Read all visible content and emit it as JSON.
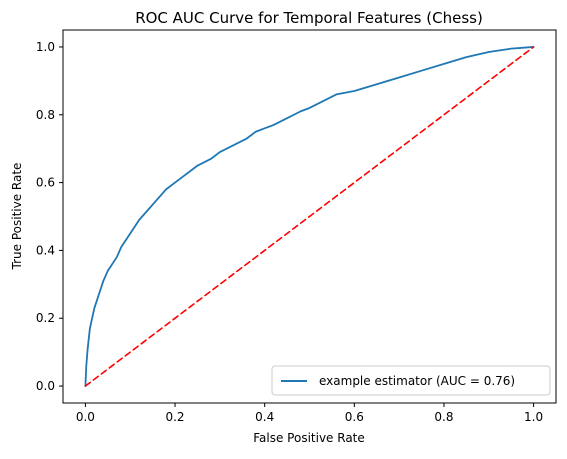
{
  "chart_data": {
    "type": "line",
    "title": "ROC AUC Curve for Temporal Features (Chess)",
    "xlabel": "False Positive Rate",
    "ylabel": "True Positive Rate",
    "xlim": [
      -0.05,
      1.05
    ],
    "ylim": [
      -0.05,
      1.05
    ],
    "x_ticks": [
      0.0,
      0.2,
      0.4,
      0.6,
      0.8,
      1.0
    ],
    "y_ticks": [
      0.0,
      0.2,
      0.4,
      0.6,
      0.8,
      1.0
    ],
    "x_tick_labels": [
      "0.0",
      "0.2",
      "0.4",
      "0.6",
      "0.8",
      "1.0"
    ],
    "y_tick_labels": [
      "0.0",
      "0.2",
      "0.4",
      "0.6",
      "0.8",
      "1.0"
    ],
    "grid": false,
    "legend_position": "lower-right",
    "series": [
      {
        "name": "example estimator (AUC = 0.76)",
        "color": "#1f77b4",
        "line_style": "solid",
        "x": [
          0.0,
          0.002,
          0.005,
          0.01,
          0.015,
          0.02,
          0.03,
          0.04,
          0.05,
          0.06,
          0.07,
          0.08,
          0.1,
          0.12,
          0.14,
          0.16,
          0.18,
          0.2,
          0.22,
          0.25,
          0.28,
          0.3,
          0.33,
          0.36,
          0.38,
          0.4,
          0.42,
          0.45,
          0.48,
          0.5,
          0.53,
          0.56,
          0.6,
          0.65,
          0.7,
          0.75,
          0.8,
          0.85,
          0.9,
          0.95,
          1.0
        ],
        "y": [
          0.0,
          0.06,
          0.11,
          0.17,
          0.2,
          0.23,
          0.27,
          0.31,
          0.34,
          0.36,
          0.38,
          0.41,
          0.45,
          0.49,
          0.52,
          0.55,
          0.58,
          0.6,
          0.62,
          0.65,
          0.67,
          0.69,
          0.71,
          0.73,
          0.75,
          0.76,
          0.77,
          0.79,
          0.81,
          0.82,
          0.84,
          0.86,
          0.87,
          0.89,
          0.91,
          0.93,
          0.95,
          0.97,
          0.985,
          0.995,
          1.0
        ]
      },
      {
        "name": "",
        "color": "#ff0000",
        "line_style": "dashed",
        "x": [
          0.0,
          1.0
        ],
        "y": [
          0.0,
          1.0
        ]
      }
    ]
  }
}
